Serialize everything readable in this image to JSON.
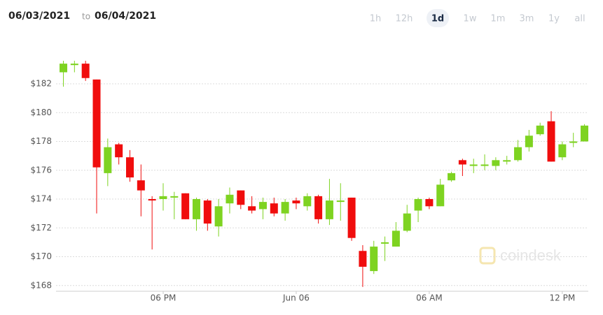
{
  "chart_data": {
    "type": "candlestick",
    "range_from": "06/03/2021",
    "range_sep": "to",
    "range_to": "06/04/2021",
    "timeframes": [
      "1h",
      "12h",
      "1d",
      "1w",
      "1m",
      "3m",
      "1y",
      "all"
    ],
    "selected_timeframe": "1d",
    "watermark": "coindesk",
    "up_color": "#7ed321",
    "down_color": "#f00d0d",
    "grid": true,
    "ylim": [
      167.6,
      184.4
    ],
    "yticks": [
      {
        "value": 168,
        "label": "$168"
      },
      {
        "value": 170,
        "label": "$170"
      },
      {
        "value": 172,
        "label": "$172"
      },
      {
        "value": 174,
        "label": "$174"
      },
      {
        "value": 176,
        "label": "$176"
      },
      {
        "value": 178,
        "label": "$178"
      },
      {
        "value": 180,
        "label": "$180"
      },
      {
        "value": 182,
        "label": "$182"
      }
    ],
    "categories": [
      null,
      null,
      null,
      null,
      null,
      null,
      null,
      null,
      null,
      "06 PM",
      null,
      null,
      null,
      null,
      null,
      null,
      null,
      null,
      null,
      null,
      null,
      "Jun 06",
      null,
      null,
      null,
      null,
      null,
      null,
      null,
      null,
      null,
      null,
      null,
      "06 AM",
      null,
      null,
      null,
      null,
      null,
      null,
      null,
      null,
      null,
      null,
      null,
      "12 PM",
      null,
      null
    ],
    "open": [
      182.8,
      183.3,
      183.4,
      182.3,
      175.8,
      177.8,
      176.9,
      175.3,
      174.0,
      174.0,
      174.1,
      174.4,
      172.6,
      173.9,
      172.1,
      173.7,
      174.6,
      173.5,
      173.3,
      173.7,
      173.0,
      173.9,
      173.5,
      174.2,
      172.6,
      173.8,
      174.1,
      170.4,
      169.0,
      170.9,
      170.7,
      171.8,
      173.2,
      174.0,
      173.5,
      175.3,
      176.7,
      176.3,
      176.3,
      176.3,
      176.6,
      176.7,
      177.6,
      178.5,
      179.4,
      176.9,
      177.9,
      178.0
    ],
    "high": [
      183.6,
      183.6,
      183.6,
      182.3,
      178.2,
      177.9,
      177.4,
      176.4,
      174.2,
      175.1,
      174.5,
      174.4,
      174.1,
      174.0,
      174.0,
      174.8,
      174.6,
      174.2,
      174.1,
      174.1,
      174.0,
      174.1,
      174.4,
      174.3,
      175.4,
      175.1,
      174.1,
      170.8,
      171.1,
      171.4,
      172.4,
      173.6,
      174.1,
      174.1,
      175.4,
      175.9,
      176.8,
      176.8,
      177.1,
      176.9,
      177.0,
      178.1,
      178.8,
      179.3,
      180.1,
      178.0,
      178.6,
      179.2
    ],
    "low": [
      181.8,
      182.8,
      182.2,
      173.0,
      174.9,
      176.4,
      175.2,
      172.8,
      170.5,
      173.2,
      172.6,
      172.6,
      171.8,
      171.8,
      171.4,
      173.0,
      173.3,
      173.0,
      172.6,
      172.8,
      172.5,
      173.3,
      173.2,
      172.3,
      172.2,
      172.5,
      171.1,
      167.9,
      168.8,
      169.7,
      170.7,
      171.7,
      172.4,
      173.3,
      173.5,
      175.2,
      175.6,
      175.8,
      176.0,
      176.0,
      176.4,
      176.6,
      177.3,
      178.4,
      176.6,
      176.7,
      177.6,
      178.0
    ],
    "close": [
      183.4,
      183.4,
      182.4,
      176.2,
      177.6,
      176.9,
      175.5,
      174.6,
      173.9,
      174.2,
      174.2,
      172.6,
      174.0,
      172.3,
      173.5,
      174.3,
      173.6,
      173.2,
      173.8,
      173.0,
      173.8,
      173.7,
      174.2,
      172.6,
      173.9,
      173.9,
      171.3,
      169.3,
      170.7,
      171.0,
      171.8,
      173.0,
      174.0,
      173.5,
      175.0,
      175.8,
      176.4,
      176.4,
      176.4,
      176.7,
      176.7,
      177.6,
      178.4,
      179.1,
      176.6,
      177.8,
      178.0,
      179.1
    ]
  }
}
